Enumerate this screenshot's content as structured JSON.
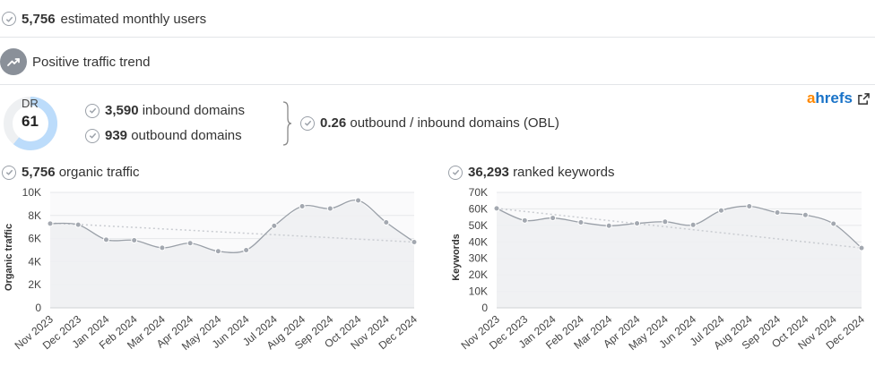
{
  "monthly_users": {
    "value": "5,756",
    "label": "estimated monthly users"
  },
  "traffic_trend": {
    "label": "Positive traffic trend",
    "icon": "trending-up-icon"
  },
  "dr": {
    "label": "DR",
    "value": "61",
    "fraction": 0.61,
    "color": "#bcdcfb",
    "track": "#eef0f2"
  },
  "domains": {
    "inbound_value": "3,590",
    "inbound_label": "inbound domains",
    "outbound_value": "939",
    "outbound_label": "outbound domains",
    "obl_value": "0.26",
    "obl_label": "outbound / inbound domains (OBL)"
  },
  "ahrefs": {
    "brand_a": "a",
    "brand_rest": "hrefs",
    "icon": "external-link-icon"
  },
  "organic": {
    "value": "5,756",
    "label": "organic traffic"
  },
  "keywords": {
    "value": "36,293",
    "label": "ranked keywords"
  },
  "chart_data": [
    {
      "type": "line",
      "ylabel": "Organic traffic",
      "ylim": [
        0,
        10000
      ],
      "yticks": [
        "0",
        "2K",
        "4K",
        "6K",
        "8K",
        "10K"
      ],
      "categories": [
        "Nov 2023",
        "Dec 2023",
        "Jan 2024",
        "Feb 2024",
        "Mar 2024",
        "Apr 2024",
        "May 2024",
        "Jun 2024",
        "Jul 2024",
        "Aug 2024",
        "Sep 2024",
        "Oct 2024",
        "Nov 2024",
        "Dec 2024"
      ],
      "values": [
        7300,
        7200,
        5900,
        5850,
        5200,
        5600,
        4900,
        5000,
        7100,
        8800,
        8600,
        9300,
        7400,
        5700
      ],
      "trend": [
        7350,
        5700
      ],
      "color": "#9aa0a8"
    },
    {
      "type": "line",
      "ylabel": "Keywords",
      "ylim": [
        0,
        70000
      ],
      "yticks": [
        "0",
        "10K",
        "20K",
        "30K",
        "40K",
        "50K",
        "60K",
        "70K"
      ],
      "categories": [
        "Nov 2023",
        "Dec 2023",
        "Jan 2024",
        "Feb 2024",
        "Mar 2024",
        "Apr 2024",
        "May 2024",
        "Jun 2024",
        "Jul 2024",
        "Aug 2024",
        "Sep 2024",
        "Oct 2024",
        "Nov 2024",
        "Dec 2024"
      ],
      "values": [
        60300,
        53000,
        54500,
        51800,
        49800,
        51200,
        52200,
        50300,
        59000,
        61600,
        57800,
        56300,
        51000,
        36300
      ],
      "trend": [
        60300,
        36300
      ],
      "color": "#9aa0a8"
    }
  ]
}
